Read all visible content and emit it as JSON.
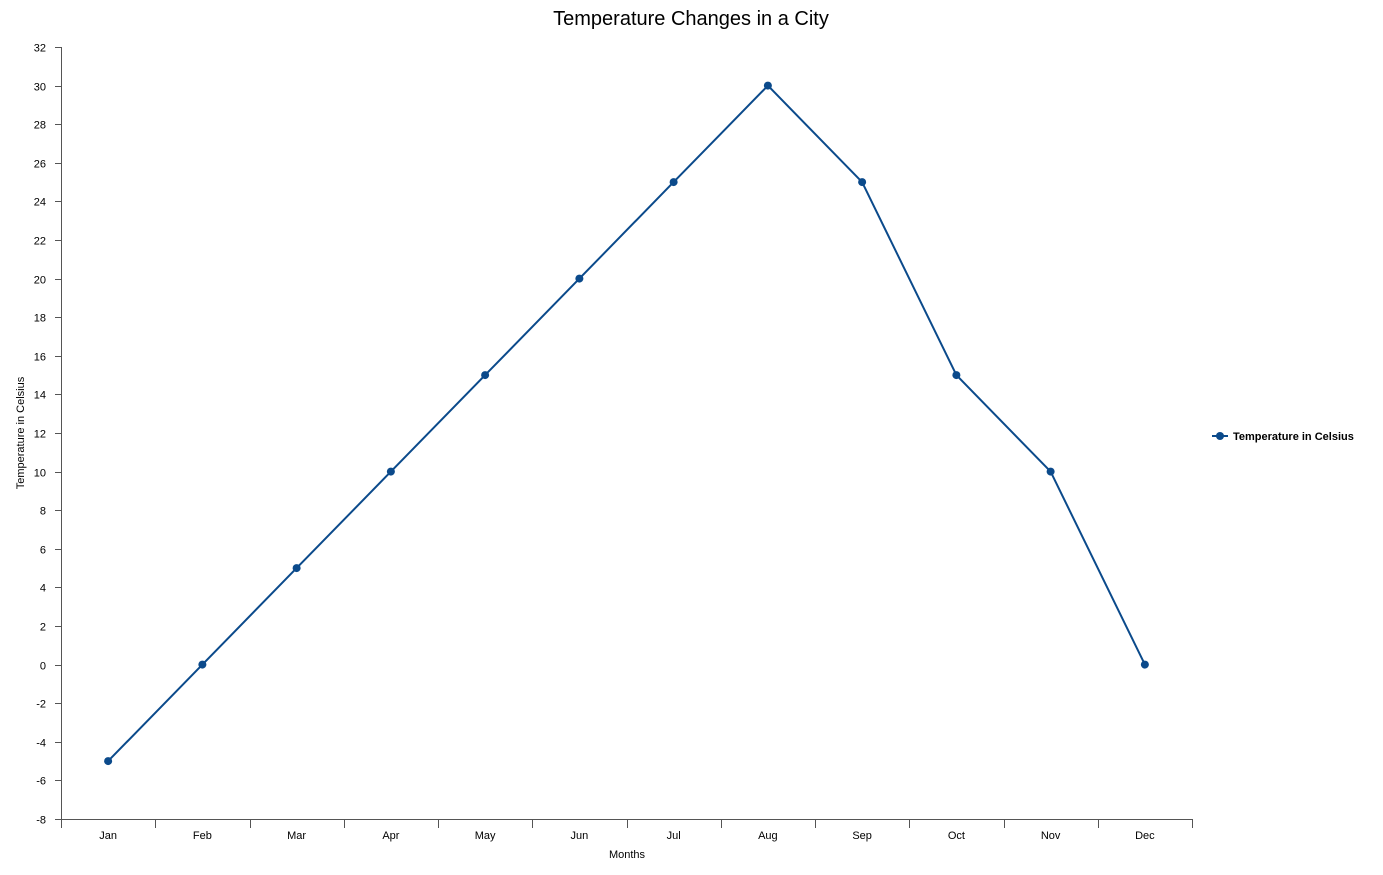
{
  "chart_data": {
    "type": "line",
    "title": "Temperature Changes in a City",
    "xlabel": "Months",
    "ylabel": "Temperature in Celsius",
    "categories": [
      "Jan",
      "Feb",
      "Mar",
      "Apr",
      "May",
      "Jun",
      "Jul",
      "Aug",
      "Sep",
      "Oct",
      "Nov",
      "Dec"
    ],
    "series": [
      {
        "name": "Temperature in Celsius",
        "color": "#0b4a8b",
        "values": [
          -5,
          0,
          5,
          10,
          15,
          20,
          25,
          30,
          25,
          15,
          10,
          0
        ]
      }
    ],
    "ylim": [
      -8,
      32
    ],
    "yticks": [
      -8,
      -6,
      -4,
      -2,
      0,
      2,
      4,
      6,
      8,
      10,
      12,
      14,
      16,
      18,
      20,
      22,
      24,
      26,
      28,
      30,
      32
    ],
    "grid": false,
    "legend_position": "right"
  }
}
